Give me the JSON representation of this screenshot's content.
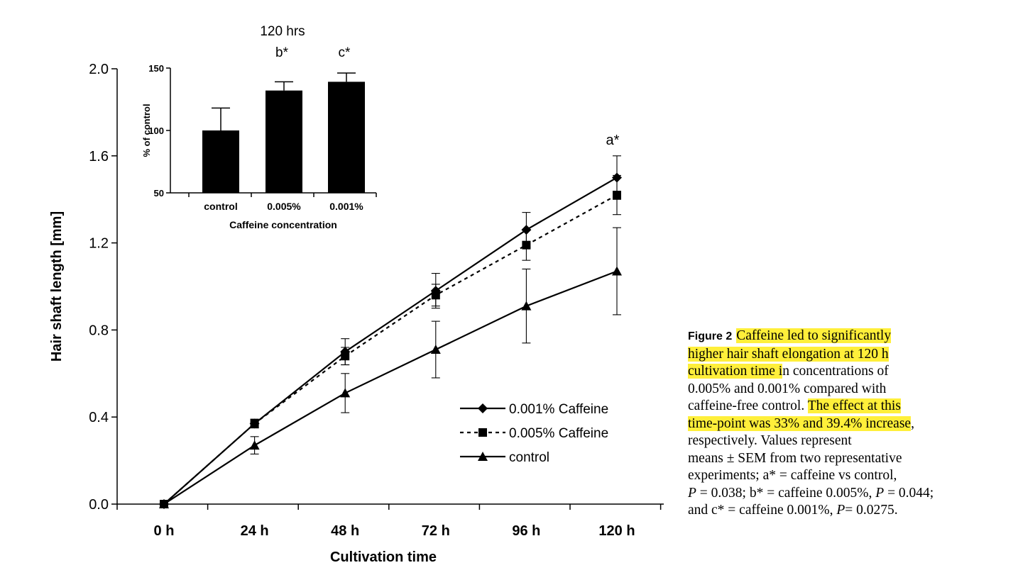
{
  "chart_data": [
    {
      "type": "line",
      "xlabel": "Cultivation time",
      "ylabel": "Hair shaft length [mm]",
      "categories": [
        "0 h",
        "24 h",
        "48 h",
        "72 h",
        "96 h",
        "120 h"
      ],
      "ylim": [
        0,
        2.0
      ],
      "yticks": [
        "0.0",
        "0.4",
        "0.8",
        "1.2",
        "1.6",
        "2.0"
      ],
      "grid": false,
      "legend_position": "bottom-right",
      "annotations": [
        {
          "text": "a*",
          "category": "120 h"
        }
      ],
      "series": [
        {
          "name": "0.001% Caffeine",
          "marker": "diamond",
          "line": "solid",
          "values": [
            0.0,
            0.37,
            0.7,
            0.98,
            1.26,
            1.5
          ],
          "errors": [
            0.0,
            0.02,
            0.06,
            0.08,
            0.08,
            0.1
          ]
        },
        {
          "name": "0.005% Caffeine",
          "marker": "square",
          "line": "dotted",
          "values": [
            0.0,
            0.37,
            0.68,
            0.96,
            1.19,
            1.42
          ],
          "errors": [
            0.0,
            0.02,
            0.04,
            0.05,
            0.07,
            0.09
          ]
        },
        {
          "name": "control",
          "marker": "triangle",
          "line": "solid",
          "values": [
            0.0,
            0.27,
            0.51,
            0.71,
            0.91,
            1.07
          ],
          "errors": [
            0.0,
            0.04,
            0.09,
            0.13,
            0.17,
            0.2
          ]
        }
      ]
    },
    {
      "type": "bar",
      "title": "120 hrs",
      "xlabel": "Caffeine concentration",
      "ylabel": "% of control",
      "categories": [
        "control",
        "0.005%",
        "0.001%"
      ],
      "values": [
        100,
        132,
        139
      ],
      "errors": [
        18,
        7,
        7
      ],
      "ylim": [
        50,
        150
      ],
      "yticks": [
        "50",
        "100",
        "150"
      ],
      "annotations": [
        {
          "text": "b*",
          "category": "0.005%"
        },
        {
          "text": "c*",
          "category": "0.001%"
        }
      ]
    }
  ],
  "caption": {
    "label": "Figure 2",
    "l1": "Caffeine led to significantly",
    "l2": "higher hair shaft elongation at 120 h",
    "l3a": "cultivation time i",
    "l3b": "n concentrations of",
    "l4": "0.005% and 0.001% compared with",
    "l5a": "caffeine-free control. ",
    "l5b": "The effect at this",
    "l6a": "time-point was 33% and 39.4% increase",
    "l6b": ",",
    "l7": "respectively. Values represent",
    "l8": "means ± SEM from two representative",
    "l9": "experiments; a* = caffeine vs control,",
    "l10a": "P",
    "l10b": " = 0.038; b* = caffeine 0.005%, ",
    "l10c": "P",
    "l10d": " = 0.044;",
    "l11a": "and c* = caffeine 0.001%, ",
    "l11b": "P",
    "l11c": "= 0.0275.",
    "highlight_color": "#ffef3a"
  }
}
